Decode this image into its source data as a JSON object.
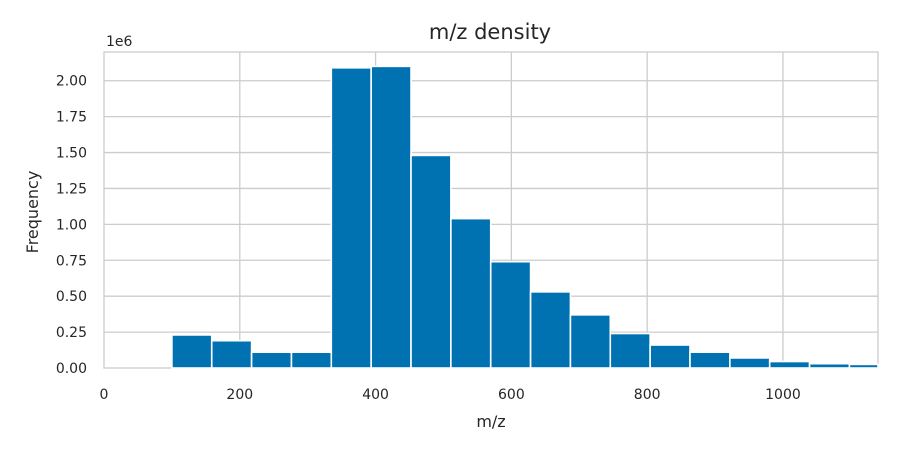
{
  "chart_data": {
    "type": "bar",
    "title": "m/z density",
    "xlabel": "m/z",
    "ylabel": "Frequency",
    "y_multiplier_label": "1e6",
    "xlim": [
      0,
      1140
    ],
    "ylim": [
      0,
      2.2
    ],
    "grid": true,
    "x_ticks": [
      0,
      200,
      400,
      600,
      800,
      1000
    ],
    "y_ticks": [
      0.0,
      0.25,
      0.5,
      0.75,
      1.0,
      1.25,
      1.5,
      1.75,
      2.0
    ],
    "x_tick_labels": [
      "0",
      "200",
      "400",
      "600",
      "800",
      "1000"
    ],
    "y_tick_labels": [
      "0.00",
      "0.25",
      "0.50",
      "0.75",
      "1.00",
      "1.25",
      "1.50",
      "1.75",
      "2.00"
    ],
    "bin_edges": [
      100,
      158.7,
      217.4,
      276.1,
      334.8,
      393.5,
      452.2,
      510.9,
      569.6,
      628.3,
      687.0,
      745.7,
      804.4,
      863.1,
      921.8,
      980.5,
      1039.2,
      1097.9,
      1140
    ],
    "values": [
      0.23,
      0.19,
      0.11,
      0.11,
      2.09,
      2.1,
      1.48,
      1.04,
      0.74,
      0.53,
      0.37,
      0.24,
      0.16,
      0.11,
      0.07,
      0.045,
      0.03,
      0.025
    ],
    "bar_color": "#0072b2"
  }
}
